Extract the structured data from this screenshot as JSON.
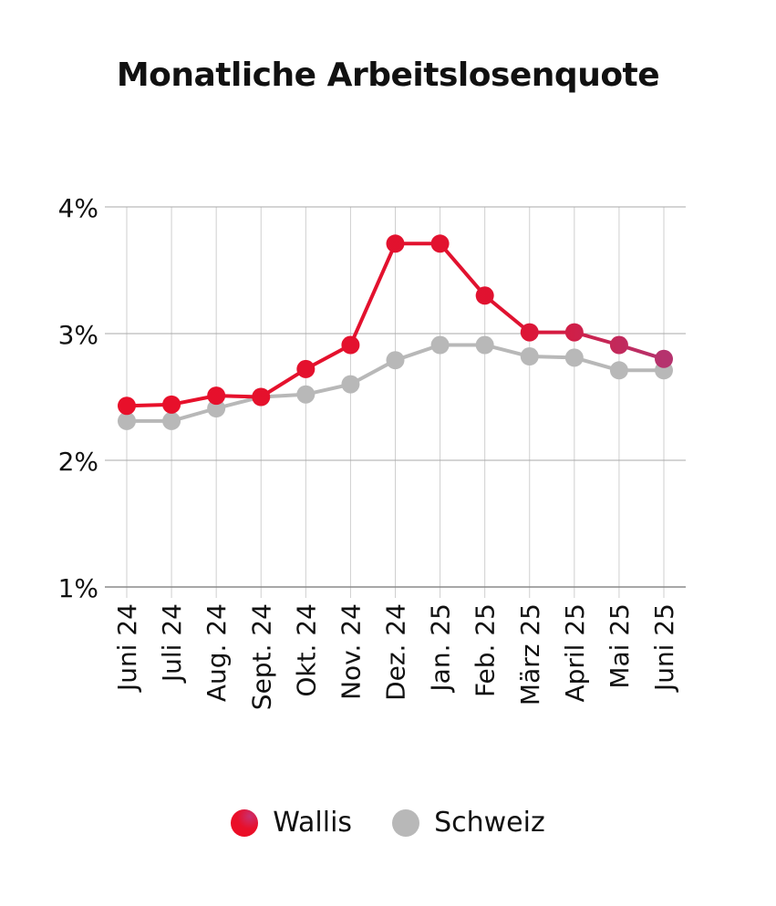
{
  "chart_data": {
    "type": "line",
    "title": "Monatliche Arbeitslosenquote",
    "xlabel": "",
    "ylabel": "",
    "categories": [
      "Juni 24",
      "Juli 24",
      "Aug. 24",
      "Sept. 24",
      "Okt. 24",
      "Nov. 24",
      "Dez. 24",
      "Jan. 25",
      "Feb. 25",
      "März 25",
      "April 25",
      "Mai 25",
      "Juni 25"
    ],
    "ylim": [
      1,
      4
    ],
    "yticks": [
      1,
      2,
      3,
      4
    ],
    "ytick_labels": [
      "1%",
      "2%",
      "3%",
      "4%"
    ],
    "grid": true,
    "legend_position": "bottom",
    "series": [
      {
        "name": "Wallis",
        "color": "#e8102a",
        "color_end": "#b5336e",
        "values": [
          2.43,
          2.44,
          2.51,
          2.5,
          2.72,
          2.91,
          3.71,
          3.71,
          3.3,
          3.01,
          3.01,
          2.91,
          2.8
        ]
      },
      {
        "name": "Schweiz",
        "color": "#b8b8b8",
        "values": [
          2.31,
          2.31,
          2.41,
          2.5,
          2.52,
          2.6,
          2.79,
          2.91,
          2.91,
          2.82,
          2.81,
          2.71,
          2.71
        ]
      }
    ]
  }
}
